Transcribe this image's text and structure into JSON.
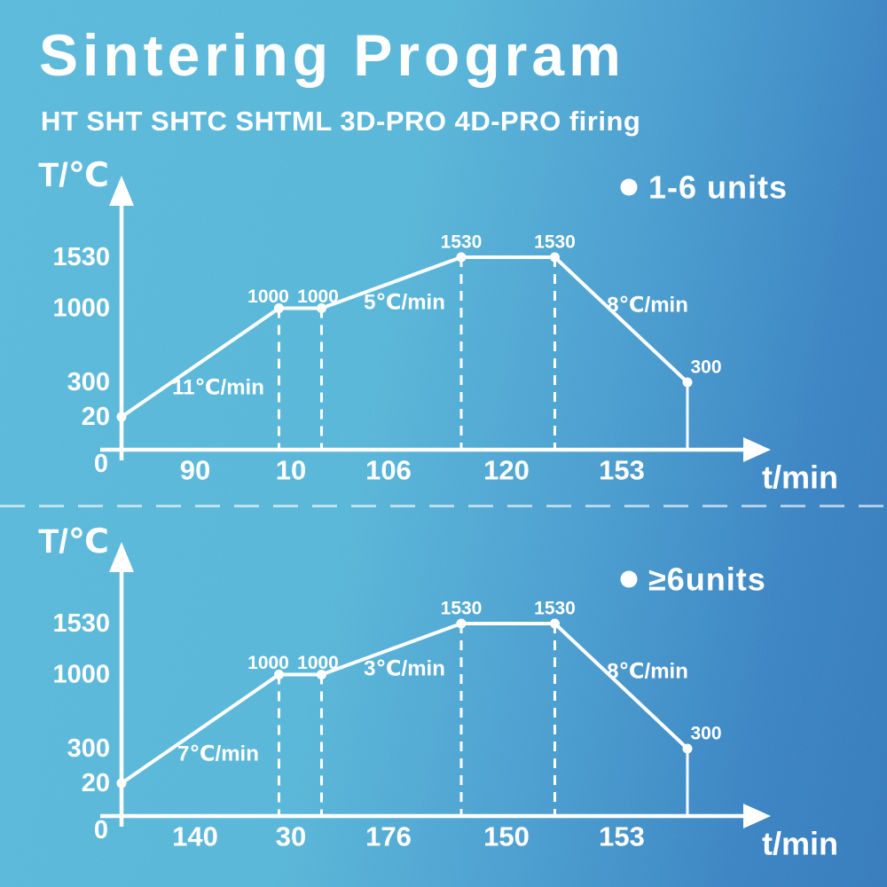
{
  "header": {
    "title": "Sintering Program",
    "subtitle": "HT SHT SHTC SHTML 3D-PRO 4D-PRO firing"
  },
  "colors": {
    "background_left": "#5bb8d9",
    "background_right": "#3779bb",
    "foreground": "#ffffff"
  },
  "chart_data": [
    {
      "type": "line",
      "legend": "1-6 units",
      "ylabel": "T/℃",
      "xlabel": "t/min",
      "origin_label": "0",
      "y_ticks": [
        "1530",
        "1000",
        "300",
        "20"
      ],
      "temps_c": [
        20,
        1000,
        1000,
        1530,
        1530,
        300
      ],
      "point_labels": [
        "",
        "1000",
        "1000",
        "1530",
        "1530",
        "300"
      ],
      "x_segment_labels": [
        "90",
        "10",
        "106",
        "120",
        "153"
      ],
      "rate_labels": [
        "11℃/min",
        "5℃/min",
        "8℃/min"
      ]
    },
    {
      "type": "line",
      "legend": "≥6units",
      "ylabel": "T/℃",
      "xlabel": "t/min",
      "origin_label": "0",
      "y_ticks": [
        "1530",
        "1000",
        "300",
        "20"
      ],
      "temps_c": [
        20,
        1000,
        1000,
        1530,
        1530,
        300
      ],
      "point_labels": [
        "",
        "1000",
        "1000",
        "1530",
        "1530",
        "300"
      ],
      "x_segment_labels": [
        "140",
        "30",
        "176",
        "150",
        "153"
      ],
      "rate_labels": [
        "7℃/min",
        "3℃/min",
        "8℃/min"
      ]
    }
  ]
}
